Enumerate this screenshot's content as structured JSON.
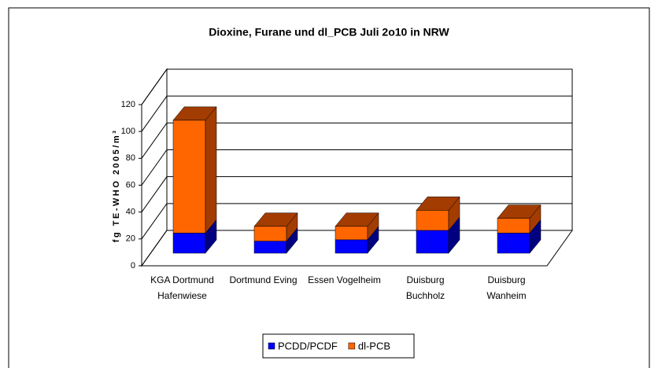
{
  "chart_data": {
    "type": "bar3d_stacked",
    "title": "Dioxine, Furane und dl_PCB Juli 2o10 in NRW",
    "y_label": "fg TE-WHO 2005/m³",
    "categories": [
      [
        "KGA Dortmund",
        "Hafenwiese"
      ],
      [
        "Dortmund Eving"
      ],
      [
        "Essen Vogelheim"
      ],
      [
        "Duisburg",
        "Buchholz"
      ],
      [
        "Duisburg",
        "Wanheim"
      ]
    ],
    "series": [
      {
        "name": "PCDD/PCDF",
        "color": "#0000ff",
        "side": "#000080",
        "values": [
          15,
          9,
          10,
          17,
          15
        ]
      },
      {
        "name": "dl-PCB",
        "color": "#ff6600",
        "side": "#a33c00",
        "values": [
          84,
          11,
          10,
          15,
          11
        ]
      }
    ],
    "ylim": [
      0,
      120
    ],
    "yticks": [
      0,
      20,
      40,
      60,
      80,
      100,
      120
    ],
    "grid": true,
    "legend": "bottom"
  }
}
